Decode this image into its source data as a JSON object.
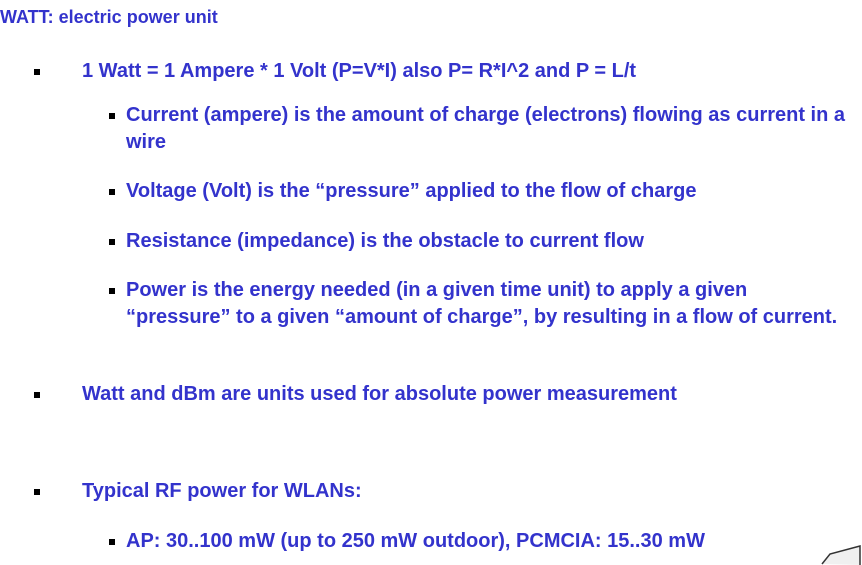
{
  "slide": {
    "title": "WATT: electric power unit",
    "items": [
      {
        "level": 1,
        "text": "1 Watt = 1 Ampere * 1 Volt (P=V*I) also  P= R*I^2 and P = L/t"
      },
      {
        "level": 2,
        "text": "Current (ampere) is the amount of charge (electrons) flowing as current in a wire"
      },
      {
        "level": 2,
        "text": "Voltage (Volt) is the “pressure” applied to the flow of charge"
      },
      {
        "level": 2,
        "text": "Resistance (impedance) is the obstacle to current flow"
      },
      {
        "level": 2,
        "text": "Power is the energy needed (in a given time unit) to apply a given “pressure” to a given “amount of charge”, by resulting in a flow of current."
      },
      {
        "level": 1,
        "text": "Watt and dBm are units used for absolute power measurement"
      },
      {
        "level": 1,
        "text": "Typical RF power for WLANs:"
      },
      {
        "level": 2,
        "text": "AP: 30..100 mW (up to 250 mW outdoor), PCMCIA: 15..30 mW"
      }
    ]
  }
}
